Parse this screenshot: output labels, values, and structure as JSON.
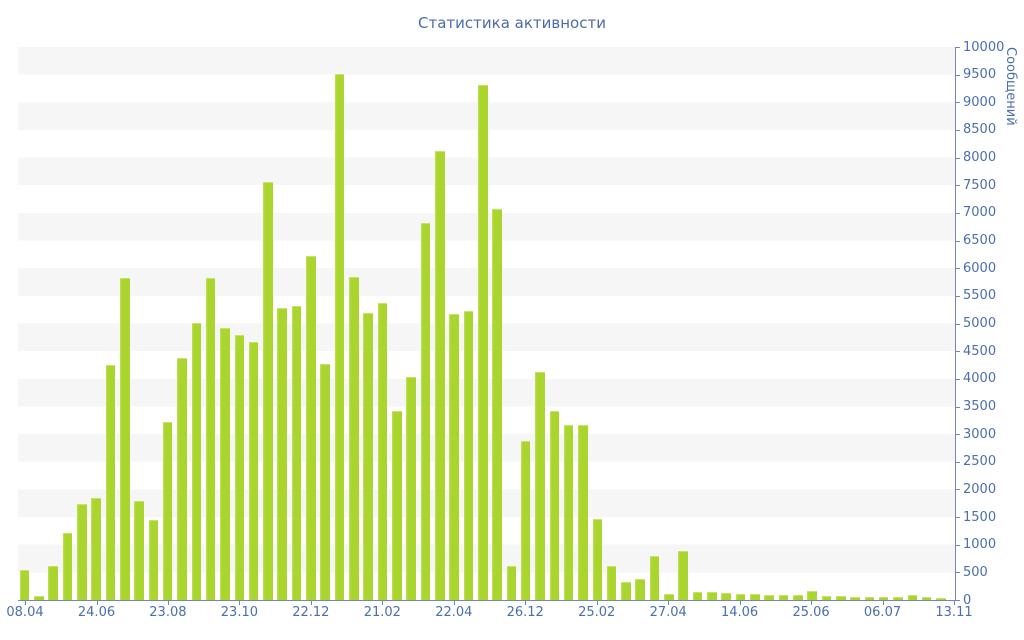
{
  "title": "Статистика активности",
  "chart_data": {
    "type": "bar",
    "title": "Статистика активности",
    "xlabel": "",
    "ylabel": "Сообщений",
    "ylim": [
      0,
      10000
    ],
    "y_tick_step": 500,
    "grid": "striped-bands-every-500",
    "legend": "none",
    "y_axis_side": "right",
    "y_tick_labels": [
      "0",
      "500",
      "1000",
      "1500",
      "2000",
      "2500",
      "3000",
      "3500",
      "4000",
      "4500",
      "5000",
      "5500",
      "6000",
      "6500",
      "7000",
      "7500",
      "8000",
      "8500",
      "9000",
      "9500",
      "10000"
    ],
    "x_tick_labels": [
      "08.04",
      "24.06",
      "23.08",
      "23.10",
      "22.12",
      "21.02",
      "22.04",
      "26.12",
      "25.02",
      "27.04",
      "14.06",
      "25.06",
      "06.07",
      "13.11"
    ],
    "values": [
      530,
      55,
      590,
      1190,
      1720,
      1820,
      4230,
      5800,
      1780,
      1430,
      3200,
      4360,
      5000,
      5800,
      4900,
      4780,
      4650,
      7550,
      5260,
      5300,
      6200,
      4250,
      9500,
      5820,
      5180,
      5360,
      3400,
      4010,
      6800,
      8100,
      5150,
      5200,
      9300,
      7050,
      600,
      2850,
      4100,
      3400,
      3150,
      3150,
      1450,
      600,
      310,
      360,
      780,
      90,
      860,
      130,
      120,
      105,
      95,
      85,
      75,
      70,
      65,
      150,
      55,
      50,
      45,
      40,
      35,
      30,
      75,
      30,
      25
    ]
  },
  "colors": {
    "bar_fill": "#a9d52e",
    "bar_highlight": "#c6e468",
    "axis_line": "#7388ae",
    "tick_label": "#4a6fae",
    "title_text": "#4a6cab",
    "band_gray": "#f6f6f6",
    "background": "#ffffff"
  }
}
